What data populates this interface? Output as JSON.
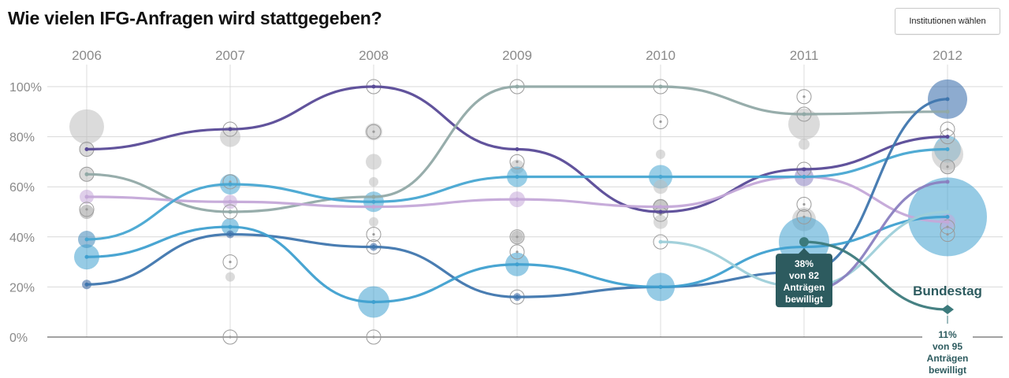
{
  "header": {
    "title": "Wie vielen IFG-Anfragen wird stattgegeben?",
    "button_label": "Institutionen wählen"
  },
  "chart_data": {
    "type": "line",
    "title": "Wie vielen IFG-Anfragen wird stattgegeben?",
    "xlabel": "",
    "ylabel": "",
    "x": [
      "2006",
      "2007",
      "2008",
      "2009",
      "2010",
      "2011",
      "2012"
    ],
    "y_ticks": [
      "0%",
      "20%",
      "40%",
      "60%",
      "80%",
      "100%"
    ],
    "ylim": [
      0,
      100
    ],
    "grid": true,
    "series": [
      {
        "color": "#584a97",
        "values": [
          75,
          83,
          100,
          75,
          50,
          67,
          80
        ]
      },
      {
        "color": "#91a9a6",
        "values": [
          65,
          50,
          56,
          100,
          100,
          89,
          90
        ]
      },
      {
        "color": "#c4a8d8",
        "values": [
          56,
          54,
          52,
          55,
          52,
          64,
          46
        ]
      },
      {
        "color": "#47a6d2",
        "values": [
          39,
          61,
          54,
          64,
          64,
          64,
          75
        ]
      },
      {
        "color": "#3f76ae",
        "values": [
          21,
          41,
          36,
          16,
          20,
          26,
          95
        ]
      },
      {
        "color": "#3fa0d0",
        "values": [
          32,
          44,
          14,
          29,
          20,
          36,
          48
        ]
      },
      {
        "color": "#9ecfd9",
        "values": [
          null,
          null,
          null,
          null,
          38,
          20,
          50
        ]
      },
      {
        "color": "#8a7fc0",
        "values": [
          null,
          null,
          null,
          null,
          null,
          18,
          62
        ]
      },
      {
        "color": "#3c7a7c",
        "values": [
          null,
          null,
          null,
          null,
          null,
          38,
          11
        ]
      }
    ],
    "bubbles": [
      {
        "x": "2006",
        "y": 84,
        "r": 22,
        "color": "#bdbdbd"
      },
      {
        "x": "2006",
        "y": 75,
        "r": 9,
        "color": "#bdbdbd"
      },
      {
        "x": "2006",
        "y": 65,
        "r": 9,
        "color": "#bdbdbd"
      },
      {
        "x": "2006",
        "y": 50,
        "r": 9,
        "color": "#9a9a9a"
      },
      {
        "x": "2006",
        "y": 56,
        "r": 9,
        "color": "#c4a8d8"
      },
      {
        "x": "2006",
        "y": 39,
        "r": 11,
        "color": "#3f86b8"
      },
      {
        "x": "2006",
        "y": 32,
        "r": 16,
        "color": "#3fa0d0"
      },
      {
        "x": "2006",
        "y": 21,
        "r": 6,
        "color": "#2f5f9e"
      },
      {
        "x": "2007",
        "y": 80,
        "r": 13,
        "color": "#bdbdbd"
      },
      {
        "x": "2007",
        "y": 61,
        "r": 13,
        "color": "#47a6d2"
      },
      {
        "x": "2007",
        "y": 54,
        "r": 9,
        "color": "#c4a8d8"
      },
      {
        "x": "2007",
        "y": 44,
        "r": 11,
        "color": "#3fa0d0"
      },
      {
        "x": "2007",
        "y": 41,
        "r": 5,
        "color": "#2f5f9e"
      },
      {
        "x": "2007",
        "y": 24,
        "r": 6,
        "color": "#bdbdbd"
      },
      {
        "x": "2008",
        "y": 82,
        "r": 11,
        "color": "#bdbdbd"
      },
      {
        "x": "2008",
        "y": 70,
        "r": 10,
        "color": "#bdbdbd"
      },
      {
        "x": "2008",
        "y": 62,
        "r": 6,
        "color": "#bdbdbd"
      },
      {
        "x": "2008",
        "y": 54,
        "r": 13,
        "color": "#47a6d2"
      },
      {
        "x": "2008",
        "y": 46,
        "r": 6,
        "color": "#bdbdbd"
      },
      {
        "x": "2008",
        "y": 36,
        "r": 5,
        "color": "#2f5f9e"
      },
      {
        "x": "2008",
        "y": 14,
        "r": 20,
        "color": "#3fa0d0"
      },
      {
        "x": "2009",
        "y": 68,
        "r": 9,
        "color": "#bdbdbd"
      },
      {
        "x": "2009",
        "y": 64,
        "r": 13,
        "color": "#47a6d2"
      },
      {
        "x": "2009",
        "y": 55,
        "r": 10,
        "color": "#c4a8d8"
      },
      {
        "x": "2009",
        "y": 40,
        "r": 8,
        "color": "#9a9a9a"
      },
      {
        "x": "2009",
        "y": 29,
        "r": 15,
        "color": "#3fa0d0"
      },
      {
        "x": "2009",
        "y": 16,
        "r": 5,
        "color": "#2f5f9e"
      },
      {
        "x": "2010",
        "y": 73,
        "r": 6,
        "color": "#bdbdbd"
      },
      {
        "x": "2010",
        "y": 64,
        "r": 15,
        "color": "#47a6d2"
      },
      {
        "x": "2010",
        "y": 60,
        "r": 9,
        "color": "#bdbdbd"
      },
      {
        "x": "2010",
        "y": 52,
        "r": 10,
        "color": "#9a9a9a"
      },
      {
        "x": "2010",
        "y": 46,
        "r": 9,
        "color": "#bdbdbd"
      },
      {
        "x": "2010",
        "y": 20,
        "r": 18,
        "color": "#3fa0d0"
      },
      {
        "x": "2011",
        "y": 85,
        "r": 20,
        "color": "#bdbdbd"
      },
      {
        "x": "2011",
        "y": 77,
        "r": 7,
        "color": "#bdbdbd"
      },
      {
        "x": "2011",
        "y": 64,
        "r": 12,
        "color": "#8a7fc0"
      },
      {
        "x": "2011",
        "y": 47,
        "r": 15,
        "color": "#bdbdbd"
      },
      {
        "x": "2011",
        "y": 38,
        "r": 32,
        "color": "#3fa0d0"
      },
      {
        "x": "2012",
        "y": 95,
        "r": 25,
        "color": "#2f66a8"
      },
      {
        "x": "2012",
        "y": 75,
        "r": 17,
        "color": "#47a6d2"
      },
      {
        "x": "2012",
        "y": 73,
        "r": 20,
        "color": "#bdbdbd"
      },
      {
        "x": "2012",
        "y": 68,
        "r": 9,
        "color": "#bdbdbd"
      },
      {
        "x": "2012",
        "y": 48,
        "r": 50,
        "color": "#3fa0d0"
      },
      {
        "x": "2012",
        "y": 46,
        "r": 10,
        "color": "#c4a8d8"
      }
    ],
    "outline_markers": [
      {
        "x": "2006",
        "y": 75
      },
      {
        "x": "2006",
        "y": 65
      },
      {
        "x": "2006",
        "y": 51
      },
      {
        "x": "2007",
        "y": 83
      },
      {
        "x": "2007",
        "y": 62
      },
      {
        "x": "2007",
        "y": 50
      },
      {
        "x": "2007",
        "y": 30
      },
      {
        "x": "2007",
        "y": 0
      },
      {
        "x": "2008",
        "y": 100
      },
      {
        "x": "2008",
        "y": 82
      },
      {
        "x": "2008",
        "y": 41
      },
      {
        "x": "2008",
        "y": 36
      },
      {
        "x": "2008",
        "y": 0
      },
      {
        "x": "2009",
        "y": 100
      },
      {
        "x": "2009",
        "y": 70
      },
      {
        "x": "2009",
        "y": 40
      },
      {
        "x": "2009",
        "y": 34
      },
      {
        "x": "2009",
        "y": 16
      },
      {
        "x": "2010",
        "y": 100
      },
      {
        "x": "2010",
        "y": 86
      },
      {
        "x": "2010",
        "y": 52
      },
      {
        "x": "2010",
        "y": 49
      },
      {
        "x": "2010",
        "y": 38
      },
      {
        "x": "2011",
        "y": 96
      },
      {
        "x": "2011",
        "y": 89
      },
      {
        "x": "2011",
        "y": 67
      },
      {
        "x": "2011",
        "y": 53
      },
      {
        "x": "2011",
        "y": 48
      },
      {
        "x": "2012",
        "y": 83
      },
      {
        "x": "2012",
        "y": 80
      },
      {
        "x": "2012",
        "y": 68
      },
      {
        "x": "2012",
        "y": 44
      },
      {
        "x": "2012",
        "y": 41
      }
    ],
    "annotations": [
      {
        "x": "2011",
        "y": 38,
        "lines": [
          "38%",
          "von 82",
          "Anträgen",
          "bewilligt"
        ]
      },
      {
        "x": "2012",
        "y": 11,
        "label": "Bundestag",
        "lines": [
          "11%",
          "von 95",
          "Anträgen",
          "bewilligt"
        ]
      }
    ]
  }
}
